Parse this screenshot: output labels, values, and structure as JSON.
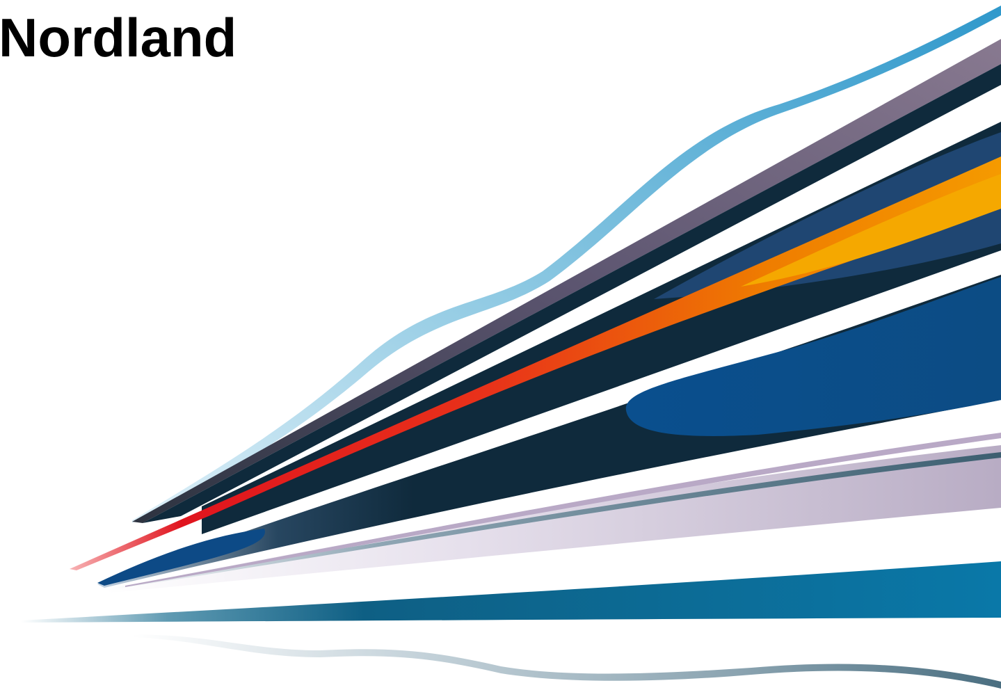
{
  "title": "Nordland",
  "artwork": {
    "name": "speed-lines-graphic",
    "colors": {
      "sky_blue": "#3a9dcc",
      "mauve": "#7a6a86",
      "dark_navy": "#0f2a3c",
      "deep_blue": "#0d4a86",
      "red": "#e0141e",
      "orange": "#ef7d00",
      "amber": "#f5a800",
      "lavender": "#c9bfd4",
      "teal": "#0a6f97",
      "slate": "#4a6e80"
    }
  }
}
